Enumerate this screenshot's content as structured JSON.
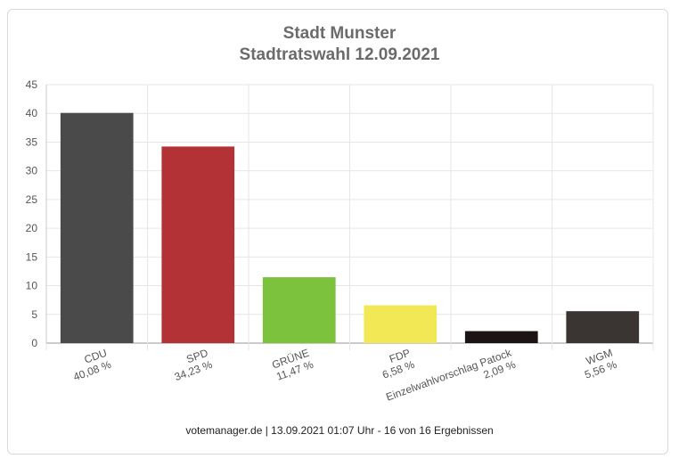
{
  "chart_data": {
    "type": "bar",
    "title": "Stadt Munster",
    "subtitle": "Stadtratswahl 12.09.2021",
    "categories": [
      "CDU",
      "SPD",
      "GRÜNE",
      "FDP",
      "Einzelwahlvorschlag Patock",
      "WGM"
    ],
    "category_labels": [
      "40,08 %",
      "34,23 %",
      "11,47 %",
      "6,58 %",
      "2,09 %",
      "5,56 %"
    ],
    "values": [
      40.08,
      34.23,
      11.47,
      6.58,
      2.09,
      5.56
    ],
    "colors": [
      "#4a4a4a",
      "#b33236",
      "#7cc23c",
      "#f2e856",
      "#1c1414",
      "#3a3533"
    ],
    "ylim": [
      0,
      45
    ],
    "yticks": [
      0,
      5,
      10,
      15,
      20,
      25,
      30,
      35,
      40,
      45
    ],
    "grid": true
  },
  "footer": "votemanager.de | 13.09.2021 01:07 Uhr - 16 von 16 Ergebnissen"
}
